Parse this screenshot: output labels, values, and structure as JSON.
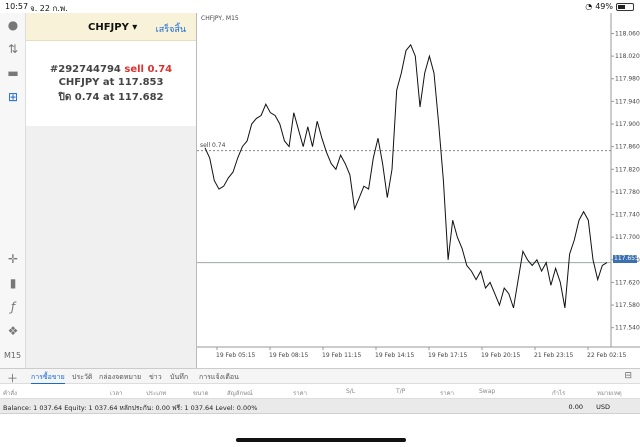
{
  "status_bar": {
    "time": "10:57",
    "date": "จ. 22 ก.พ.",
    "battery": "49%"
  },
  "toolbar": {
    "timeframe": "M15"
  },
  "order": {
    "symbol": "CHFJPY ▾",
    "done_label": "เสร็จสิ้น",
    "ticket_line": "#292744794",
    "sell_text": "sell 0.74",
    "price_line_prefix": "CHFJPY at",
    "open_price": "117.853",
    "close_line_prefix": "ปิด 0.74 at",
    "close_price": "117.682"
  },
  "chart": {
    "title": "CHFJPY, M15",
    "sell_line_label": "sell 0.74",
    "current_price": "117.655"
  },
  "chart_data": {
    "type": "line",
    "title": "CHFJPY, M15",
    "x_tick_labels": [
      "19 Feb 05:15",
      "19 Feb 08:15",
      "19 Feb 11:15",
      "19 Feb 14:15",
      "19 Feb 17:15",
      "19 Feb 20:15",
      "21 Feb 23:15",
      "22 Feb 02:15"
    ],
    "y_tick_labels": [
      "118.060",
      "118.020",
      "117.980",
      "117.940",
      "117.900",
      "117.860",
      "117.820",
      "117.780",
      "117.740",
      "117.700",
      "117.660",
      "117.620",
      "117.580",
      "117.540"
    ],
    "ylim": [
      117.52,
      118.075
    ],
    "series": [
      {
        "values": [
          117.858,
          117.84,
          117.8,
          117.785,
          117.79,
          117.805,
          117.815,
          117.84,
          117.86,
          117.87,
          117.9,
          117.91,
          117.915,
          117.935,
          117.92,
          117.915,
          117.9,
          117.87,
          117.86,
          117.92,
          117.89,
          117.86,
          117.895,
          117.86,
          117.905,
          117.875,
          117.85,
          117.83,
          117.82,
          117.845,
          117.83,
          117.81,
          117.75,
          117.77,
          117.79,
          117.785,
          117.84,
          117.875,
          117.83,
          117.77,
          117.82,
          117.96,
          117.99,
          118.03,
          118.04,
          118.02,
          117.93,
          117.99,
          118.02,
          117.99,
          117.9,
          117.8,
          117.66,
          117.73,
          117.7,
          117.68,
          117.65,
          117.64,
          117.625,
          117.64,
          117.61,
          117.62,
          117.6,
          117.58,
          117.61,
          117.6,
          117.575,
          117.625,
          117.675,
          117.66,
          117.65,
          117.66,
          117.64,
          117.655,
          117.615,
          117.645,
          117.62,
          117.575,
          117.67,
          117.695,
          117.73,
          117.745,
          117.73,
          117.66,
          117.625,
          117.65,
          117.655
        ]
      }
    ],
    "horizontal_lines": [
      117.853,
      117.655
    ]
  },
  "tabs": [
    {
      "label": "การซื้อขาย",
      "active": true
    },
    {
      "label": "ประวัติ",
      "active": false
    },
    {
      "label": "กล่องจดหมาย",
      "active": false
    },
    {
      "label": "ข่าว",
      "active": false
    },
    {
      "label": "บันทึก",
      "active": false
    },
    {
      "label": "การแจ้งเตือน",
      "active": false
    }
  ],
  "columns": [
    "คำสั่ง",
    "เวลา",
    "ประเภท",
    "ขนาด",
    "สัญลักษณ์",
    "ราคา",
    "S/L",
    "T/P",
    "ราคา",
    "Swap",
    "กำไร",
    "หมายเหตุ"
  ],
  "balance_line": "Balance: 1 037.64 Equity: 1 037.64 หลักประกัน: 0.00 ฟรี: 1 037.64 Level: 0.00%",
  "profit_value": "0.00",
  "currency": "USD"
}
